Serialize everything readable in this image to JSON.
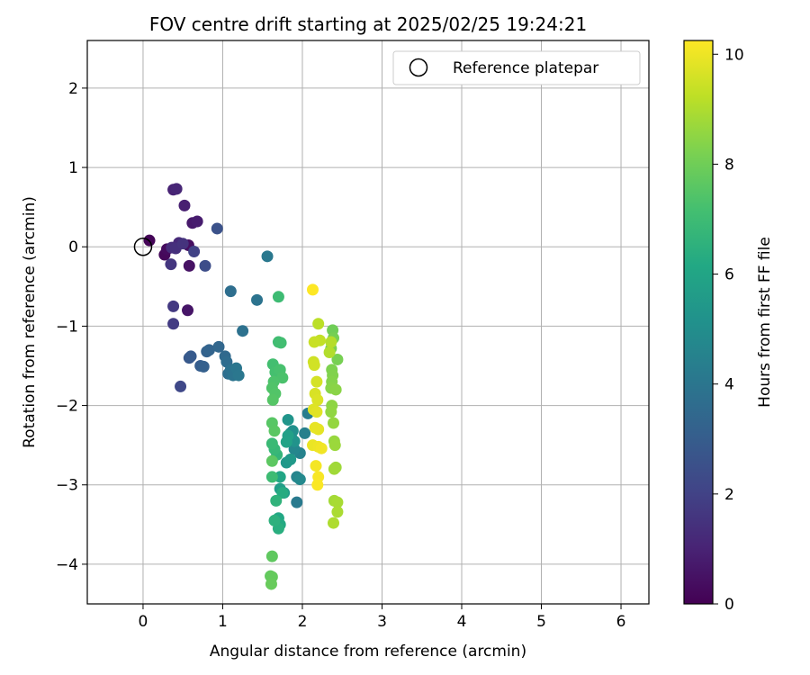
{
  "chart_data": {
    "type": "scatter",
    "title": "FOV centre drift starting at 2025/02/25 19:24:21",
    "xlabel": "Angular distance from reference (arcmin)",
    "ylabel": "Rotation from reference (arcmin)",
    "xlim": [
      -0.7,
      6.35
    ],
    "ylim": [
      -4.5,
      2.6
    ],
    "xticks": [
      0,
      1,
      2,
      3,
      4,
      5,
      6
    ],
    "yticks": [
      2,
      1,
      0,
      -1,
      -2,
      -3,
      -4
    ],
    "grid": true,
    "legend": {
      "placement": "top-right",
      "entries": [
        "Reference platepar"
      ]
    },
    "reference_point": {
      "x": 0,
      "y": 0
    },
    "colorbar": {
      "label": "Hours from first FF file",
      "range": [
        0,
        10.25
      ],
      "ticks": [
        0,
        2,
        4,
        6,
        8,
        10
      ],
      "colormap": "viridis"
    },
    "points": [
      {
        "x": 0.08,
        "y": 0.08,
        "h": 0.1
      },
      {
        "x": 0.27,
        "y": -0.1,
        "h": 0.2
      },
      {
        "x": 0.3,
        "y": -0.03,
        "h": 0.3
      },
      {
        "x": 0.57,
        "y": 0.02,
        "h": 0.4
      },
      {
        "x": 0.58,
        "y": -0.24,
        "h": 0.5
      },
      {
        "x": 0.56,
        "y": -0.8,
        "h": 0.6
      },
      {
        "x": 0.62,
        "y": 0.3,
        "h": 0.7
      },
      {
        "x": 0.68,
        "y": 0.32,
        "h": 0.8
      },
      {
        "x": 0.52,
        "y": 0.52,
        "h": 0.9
      },
      {
        "x": 0.38,
        "y": 0.72,
        "h": 1.0
      },
      {
        "x": 0.42,
        "y": 0.73,
        "h": 1.1
      },
      {
        "x": 0.45,
        "y": 0.05,
        "h": 1.2
      },
      {
        "x": 0.36,
        "y": -0.01,
        "h": 1.3
      },
      {
        "x": 0.41,
        "y": -0.02,
        "h": 1.4
      },
      {
        "x": 0.5,
        "y": 0.04,
        "h": 1.5
      },
      {
        "x": 0.35,
        "y": -0.22,
        "h": 1.6
      },
      {
        "x": 0.38,
        "y": -0.75,
        "h": 1.7
      },
      {
        "x": 0.38,
        "y": -0.97,
        "h": 1.8
      },
      {
        "x": 0.64,
        "y": -0.06,
        "h": 2.0
      },
      {
        "x": 0.47,
        "y": -1.76,
        "h": 2.2
      },
      {
        "x": 0.78,
        "y": -0.24,
        "h": 2.4
      },
      {
        "x": 0.93,
        "y": 0.23,
        "h": 2.6
      },
      {
        "x": 0.58,
        "y": -1.4,
        "h": 2.8
      },
      {
        "x": 0.6,
        "y": -1.38,
        "h": 2.9
      },
      {
        "x": 0.72,
        "y": -1.5,
        "h": 3.0
      },
      {
        "x": 0.76,
        "y": -1.51,
        "h": 3.1
      },
      {
        "x": 0.8,
        "y": -1.32,
        "h": 3.2
      },
      {
        "x": 0.83,
        "y": -1.3,
        "h": 3.3
      },
      {
        "x": 0.95,
        "y": -1.26,
        "h": 3.4
      },
      {
        "x": 1.03,
        "y": -1.38,
        "h": 3.5
      },
      {
        "x": 1.05,
        "y": -1.45,
        "h": 3.6
      },
      {
        "x": 1.07,
        "y": -1.6,
        "h": 3.7
      },
      {
        "x": 1.1,
        "y": -1.55,
        "h": 3.8
      },
      {
        "x": 1.13,
        "y": -1.62,
        "h": 3.9
      },
      {
        "x": 1.17,
        "y": -1.53,
        "h": 4.0
      },
      {
        "x": 1.2,
        "y": -1.62,
        "h": 4.05
      },
      {
        "x": 1.1,
        "y": -0.56,
        "h": 3.7
      },
      {
        "x": 1.25,
        "y": -1.06,
        "h": 3.8
      },
      {
        "x": 1.43,
        "y": -0.67,
        "h": 3.9
      },
      {
        "x": 1.56,
        "y": -0.12,
        "h": 4.1
      },
      {
        "x": 1.93,
        "y": -3.22,
        "h": 4.2
      },
      {
        "x": 2.07,
        "y": -2.1,
        "h": 4.3
      },
      {
        "x": 2.03,
        "y": -2.35,
        "h": 4.4
      },
      {
        "x": 1.97,
        "y": -2.6,
        "h": 4.5
      },
      {
        "x": 1.93,
        "y": -2.9,
        "h": 4.6
      },
      {
        "x": 1.9,
        "y": -2.55,
        "h": 4.7
      },
      {
        "x": 1.97,
        "y": -2.93,
        "h": 4.8
      },
      {
        "x": 1.85,
        "y": -2.35,
        "h": 4.9
      },
      {
        "x": 1.87,
        "y": -2.42,
        "h": 5.0
      },
      {
        "x": 1.88,
        "y": -2.32,
        "h": 5.1
      },
      {
        "x": 1.9,
        "y": -2.45,
        "h": 5.2
      },
      {
        "x": 1.82,
        "y": -2.18,
        "h": 5.3
      },
      {
        "x": 1.8,
        "y": -2.72,
        "h": 5.4
      },
      {
        "x": 1.85,
        "y": -2.68,
        "h": 5.5
      },
      {
        "x": 1.77,
        "y": -3.1,
        "h": 5.6
      },
      {
        "x": 1.72,
        "y": -3.05,
        "h": 5.7
      },
      {
        "x": 1.82,
        "y": -2.38,
        "h": 5.8
      },
      {
        "x": 1.8,
        "y": -2.46,
        "h": 5.9
      },
      {
        "x": 1.72,
        "y": -2.9,
        "h": 6.0
      },
      {
        "x": 1.7,
        "y": -3.42,
        "h": 6.1
      },
      {
        "x": 1.72,
        "y": -3.5,
        "h": 6.2
      },
      {
        "x": 1.75,
        "y": -3.1,
        "h": 6.3
      },
      {
        "x": 1.7,
        "y": -3.55,
        "h": 6.4
      },
      {
        "x": 1.65,
        "y": -3.45,
        "h": 6.5
      },
      {
        "x": 1.67,
        "y": -3.2,
        "h": 6.6
      },
      {
        "x": 1.68,
        "y": -2.62,
        "h": 6.7
      },
      {
        "x": 1.65,
        "y": -2.55,
        "h": 6.8
      },
      {
        "x": 1.62,
        "y": -2.48,
        "h": 6.9
      },
      {
        "x": 1.62,
        "y": -2.9,
        "h": 7.0
      },
      {
        "x": 1.7,
        "y": -0.63,
        "h": 7.0
      },
      {
        "x": 1.7,
        "y": -1.2,
        "h": 7.05
      },
      {
        "x": 1.73,
        "y": -1.21,
        "h": 7.1
      },
      {
        "x": 1.63,
        "y": -1.48,
        "h": 7.15
      },
      {
        "x": 1.66,
        "y": -1.58,
        "h": 7.2
      },
      {
        "x": 1.72,
        "y": -1.55,
        "h": 7.25
      },
      {
        "x": 1.75,
        "y": -1.65,
        "h": 7.3
      },
      {
        "x": 1.64,
        "y": -1.7,
        "h": 7.35
      },
      {
        "x": 1.62,
        "y": -1.78,
        "h": 7.4
      },
      {
        "x": 1.66,
        "y": -1.85,
        "h": 7.45
      },
      {
        "x": 1.63,
        "y": -1.93,
        "h": 7.5
      },
      {
        "x": 1.62,
        "y": -2.22,
        "h": 7.55
      },
      {
        "x": 1.65,
        "y": -2.32,
        "h": 7.6
      },
      {
        "x": 1.62,
        "y": -2.7,
        "h": 7.65
      },
      {
        "x": 1.62,
        "y": -3.9,
        "h": 7.7
      },
      {
        "x": 1.6,
        "y": -4.15,
        "h": 7.75
      },
      {
        "x": 1.62,
        "y": -4.16,
        "h": 7.8
      },
      {
        "x": 1.61,
        "y": -4.25,
        "h": 7.85
      },
      {
        "x": 2.38,
        "y": -1.05,
        "h": 8.0
      },
      {
        "x": 2.39,
        "y": -1.15,
        "h": 8.1
      },
      {
        "x": 2.44,
        "y": -1.42,
        "h": 8.15
      },
      {
        "x": 2.36,
        "y": -1.28,
        "h": 8.2
      },
      {
        "x": 2.37,
        "y": -1.55,
        "h": 8.25
      },
      {
        "x": 2.38,
        "y": -1.62,
        "h": 8.3
      },
      {
        "x": 2.37,
        "y": -1.7,
        "h": 8.35
      },
      {
        "x": 2.36,
        "y": -1.78,
        "h": 8.4
      },
      {
        "x": 2.42,
        "y": -1.8,
        "h": 8.45
      },
      {
        "x": 2.37,
        "y": -2.0,
        "h": 8.5
      },
      {
        "x": 2.36,
        "y": -2.08,
        "h": 8.55
      },
      {
        "x": 2.39,
        "y": -2.22,
        "h": 8.6
      },
      {
        "x": 2.4,
        "y": -2.45,
        "h": 8.65
      },
      {
        "x": 2.41,
        "y": -2.5,
        "h": 8.7
      },
      {
        "x": 2.42,
        "y": -2.78,
        "h": 8.75
      },
      {
        "x": 2.4,
        "y": -2.8,
        "h": 8.8
      },
      {
        "x": 2.4,
        "y": -3.2,
        "h": 8.85
      },
      {
        "x": 2.44,
        "y": -3.22,
        "h": 8.9
      },
      {
        "x": 2.44,
        "y": -3.34,
        "h": 8.95
      },
      {
        "x": 2.39,
        "y": -3.48,
        "h": 9.0
      },
      {
        "x": 2.34,
        "y": -1.33,
        "h": 9.05
      },
      {
        "x": 2.36,
        "y": -1.2,
        "h": 9.1
      },
      {
        "x": 2.2,
        "y": -0.97,
        "h": 9.2
      },
      {
        "x": 2.22,
        "y": -1.18,
        "h": 9.3
      },
      {
        "x": 2.15,
        "y": -1.2,
        "h": 9.4
      },
      {
        "x": 2.14,
        "y": -1.45,
        "h": 9.5
      },
      {
        "x": 2.15,
        "y": -1.49,
        "h": 9.55
      },
      {
        "x": 2.18,
        "y": -1.7,
        "h": 9.6
      },
      {
        "x": 2.16,
        "y": -1.85,
        "h": 9.65
      },
      {
        "x": 2.19,
        "y": -1.93,
        "h": 9.7
      },
      {
        "x": 2.14,
        "y": -2.05,
        "h": 9.75
      },
      {
        "x": 2.18,
        "y": -2.08,
        "h": 9.8
      },
      {
        "x": 2.2,
        "y": -2.3,
        "h": 9.85
      },
      {
        "x": 2.16,
        "y": -2.28,
        "h": 9.9
      },
      {
        "x": 2.13,
        "y": -2.5,
        "h": 9.95
      },
      {
        "x": 2.2,
        "y": -2.52,
        "h": 10.0
      },
      {
        "x": 2.24,
        "y": -2.54,
        "h": 10.05
      },
      {
        "x": 2.17,
        "y": -2.76,
        "h": 10.1
      },
      {
        "x": 2.2,
        "y": -2.9,
        "h": 10.15
      },
      {
        "x": 2.19,
        "y": -3.0,
        "h": 10.2
      },
      {
        "x": 2.13,
        "y": -0.54,
        "h": 10.25
      }
    ]
  }
}
